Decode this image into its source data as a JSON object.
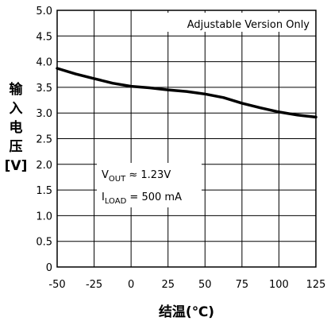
{
  "chart_data": {
    "type": "line",
    "title": "",
    "xlabel": "结温(℃)",
    "ylabel_chars": [
      "输",
      "入",
      "电",
      "压",
      "[V]"
    ],
    "xlim": [
      -50,
      125
    ],
    "ylim": [
      0,
      5.0
    ],
    "grid": true,
    "x_ticks": [
      "-50",
      "-25",
      "0",
      "25",
      "50",
      "75",
      "100",
      "125"
    ],
    "x_tick_values": [
      -50,
      -25,
      0,
      25,
      50,
      75,
      100,
      125
    ],
    "y_ticks": [
      "0",
      "0.5",
      "1.0",
      "1.5",
      "2.0",
      "2.5",
      "3.0",
      "3.5",
      "4.0",
      "4.5",
      "5.0"
    ],
    "y_tick_values": [
      0,
      0.5,
      1.0,
      1.5,
      2.0,
      2.5,
      3.0,
      3.5,
      4.0,
      4.5,
      5.0
    ],
    "series": [
      {
        "x": [
          -50,
          -37.5,
          -25,
          -12.5,
          0,
          12.5,
          25,
          37.5,
          50,
          62.5,
          75,
          87.5,
          100,
          112.5,
          125
        ],
        "y": [
          3.87,
          3.76,
          3.67,
          3.58,
          3.52,
          3.49,
          3.45,
          3.42,
          3.37,
          3.3,
          3.19,
          3.1,
          3.02,
          2.96,
          2.92
        ]
      }
    ],
    "annotations": {
      "top_right": "Adjustable Version Only",
      "condition_vout_main": "V",
      "condition_vout_sub": "OUT",
      "condition_vout_rest": " ≈ 1.23V",
      "condition_iload_main": "I",
      "condition_iload_sub": "LOAD",
      "condition_iload_rest": " = 500 mA"
    },
    "colors": {
      "line": "#000000",
      "grid": "#000000",
      "frame": "#000000"
    }
  }
}
